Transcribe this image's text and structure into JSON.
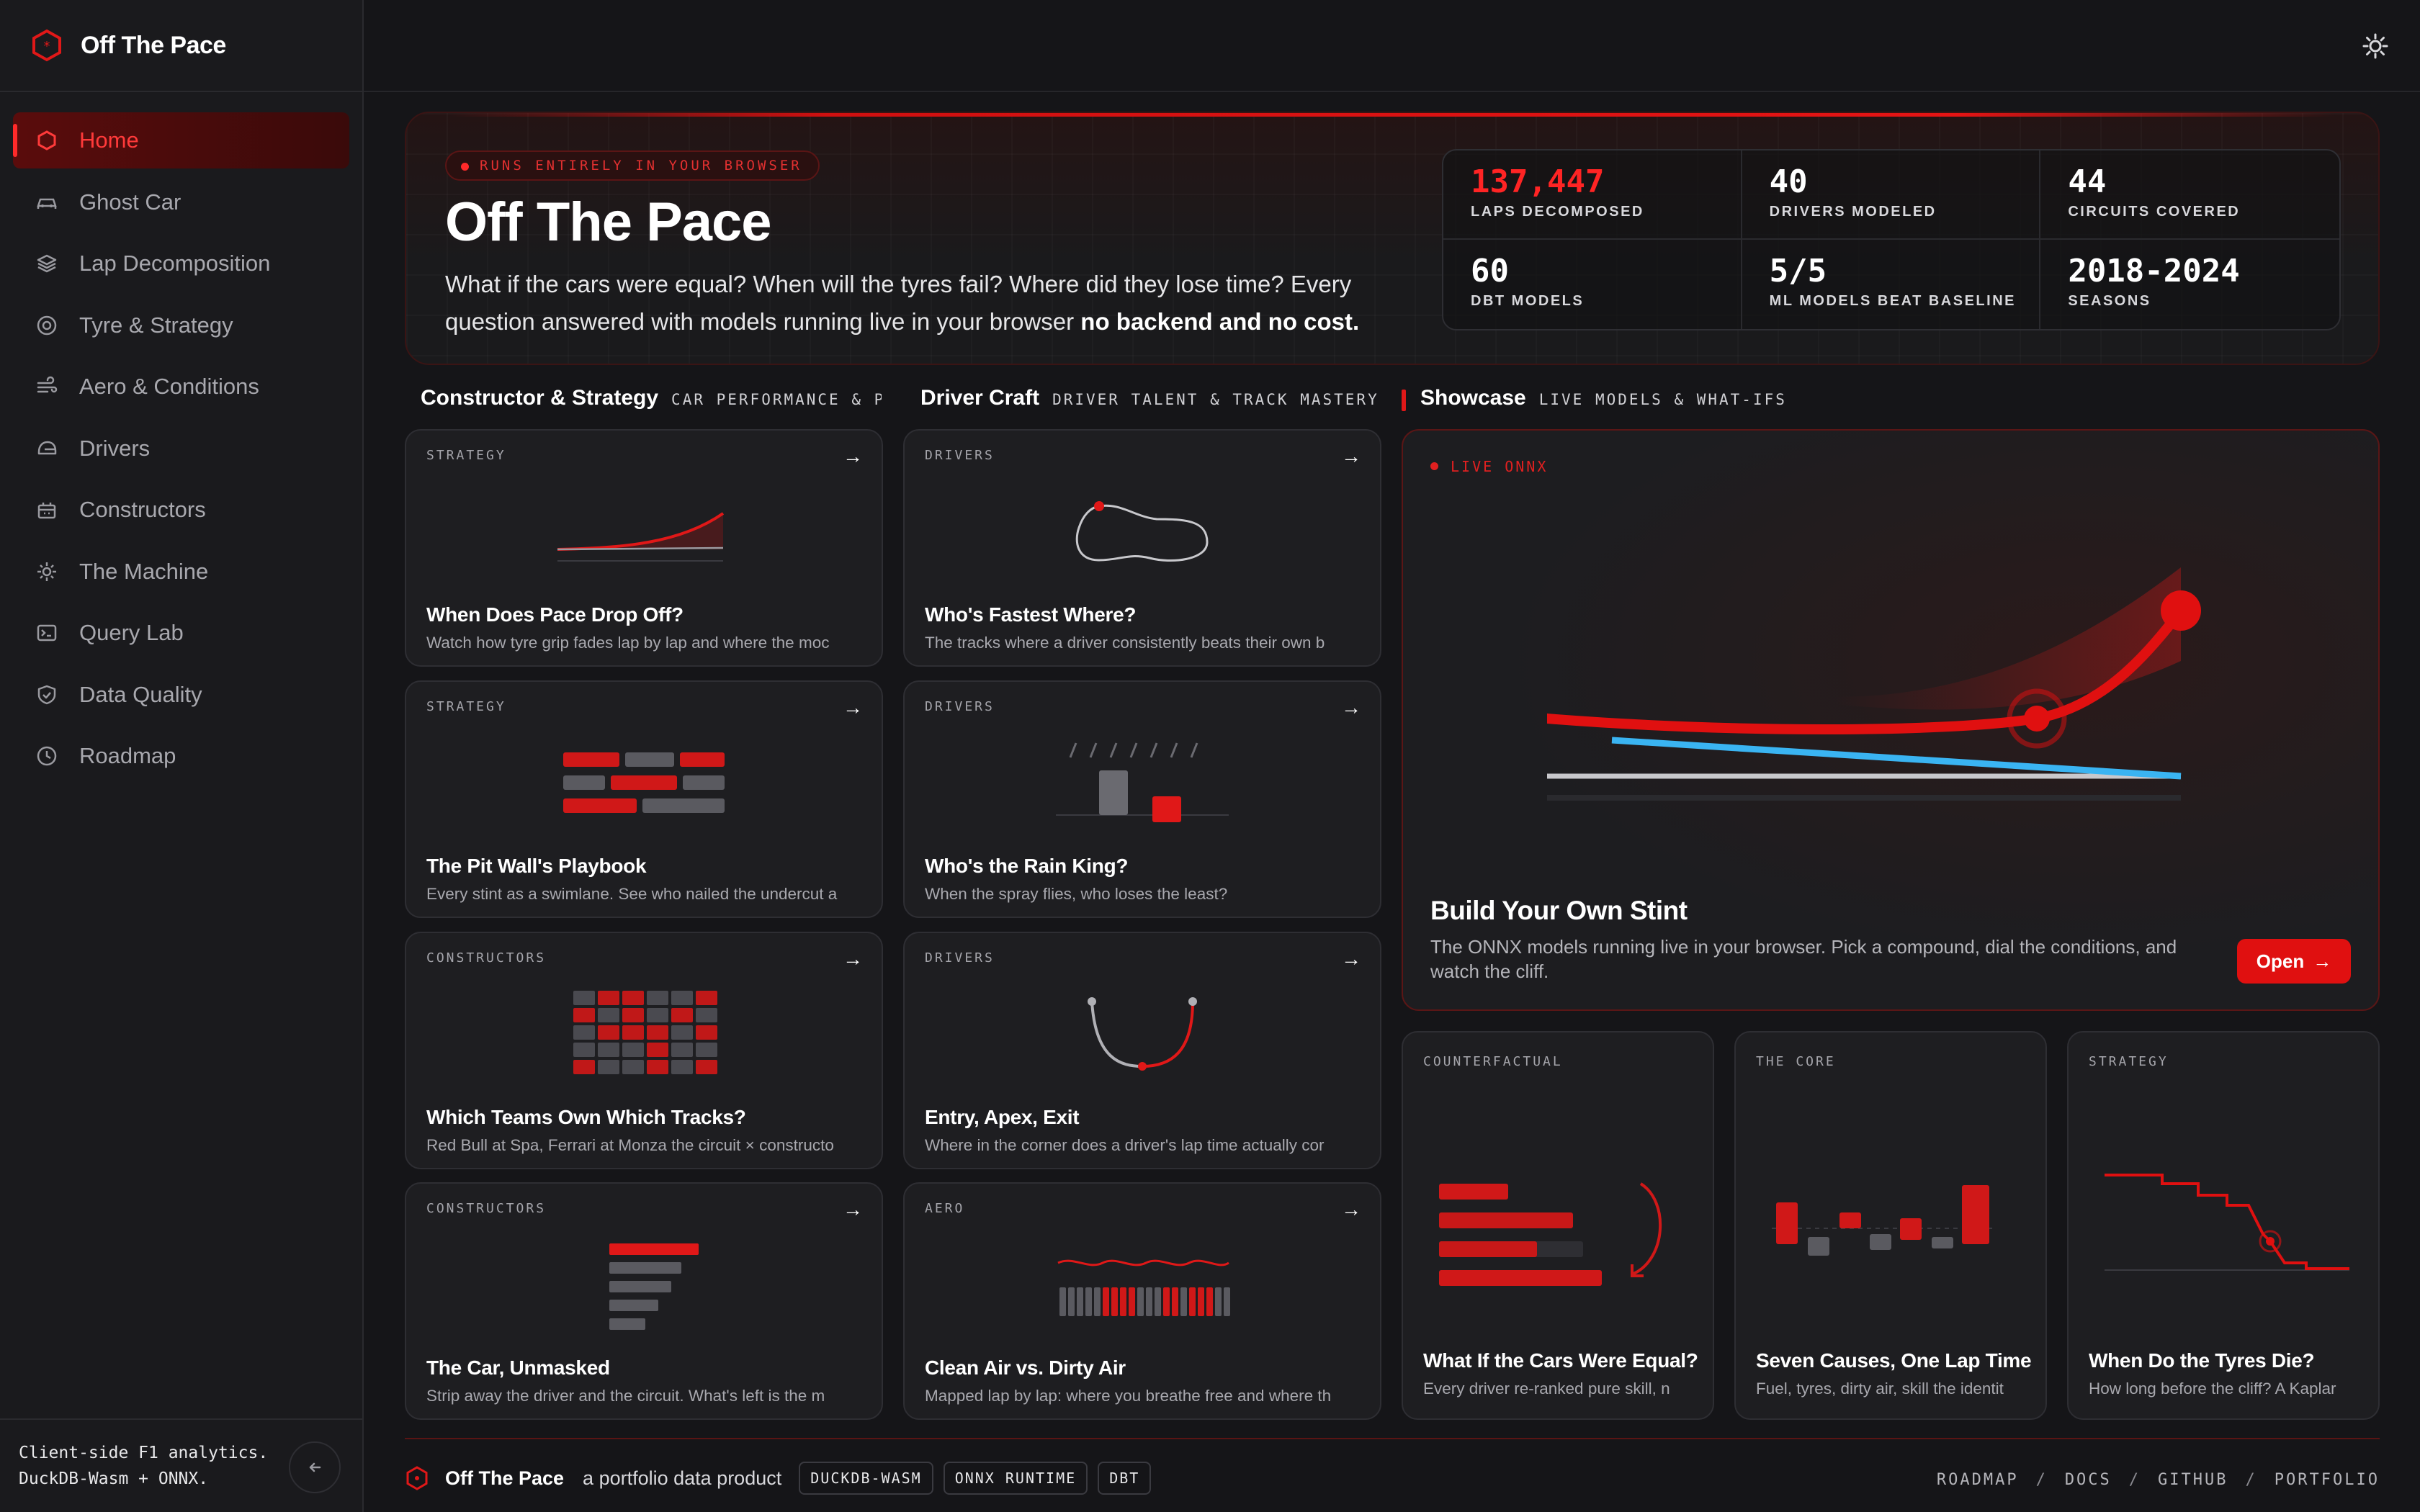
{
  "app": {
    "name": "Off The Pace"
  },
  "sidebar": {
    "items": [
      {
        "label": "Home",
        "icon": "hexagon-icon",
        "active": true
      },
      {
        "label": "Ghost Car",
        "icon": "car-icon"
      },
      {
        "label": "Lap Decomposition",
        "icon": "layers-icon"
      },
      {
        "label": "Tyre & Strategy",
        "icon": "tyre-icon"
      },
      {
        "label": "Aero & Conditions",
        "icon": "wind-icon"
      },
      {
        "label": "Drivers",
        "icon": "helmet-icon"
      },
      {
        "label": "Constructors",
        "icon": "factory-icon"
      },
      {
        "label": "The Machine",
        "icon": "cog-icon"
      },
      {
        "label": "Query Lab",
        "icon": "terminal-icon"
      },
      {
        "label": "Data Quality",
        "icon": "shield-icon"
      },
      {
        "label": "Roadmap",
        "icon": "clock-icon"
      }
    ],
    "footer_line1": "Client-side F1 analytics.",
    "footer_line2": "DuckDB-Wasm + ONNX.",
    "collapse_icon": "arrow-left-icon"
  },
  "topbar": {
    "theme_icon": "sun-icon"
  },
  "hero": {
    "badge": "RUNS ENTIRELY IN YOUR BROWSER",
    "title": "Off The Pace",
    "desc_main": "What if the cars were equal? When will the tyres fail? Where did they lose time? Every question answered with models running live in your browser",
    "desc_bold": "no backend and no cost.",
    "stats": [
      {
        "value": "137,447",
        "label": "LAPS DECOMPOSED",
        "accent": "#ff2424"
      },
      {
        "value": "40",
        "label": "DRIVERS MODELED"
      },
      {
        "value": "44",
        "label": "CIRCUITS COVERED"
      },
      {
        "value": "60",
        "label": "DBT MODELS"
      },
      {
        "value": "5/5",
        "label": "ML MODELS BEAT BASELINE"
      },
      {
        "value": "2018-2024",
        "label": "SEASONS"
      }
    ]
  },
  "sections": {
    "constructor": {
      "title": "Constructor & Strategy",
      "subtitle": "CAR PERFORMANCE & PI…"
    },
    "driver": {
      "title": "Driver Craft",
      "subtitle": "DRIVER TALENT & TRACK MASTERY"
    },
    "showcase": {
      "title": "Showcase",
      "subtitle": "LIVE MODELS & WHAT-IFS"
    }
  },
  "cards": [
    {
      "tag": "STRATEGY",
      "title": "When Does Pace Drop Off?",
      "desc": "Watch how tyre grip fades lap by lap and where the moc"
    },
    {
      "tag": "DRIVERS",
      "title": "Who's Fastest Where?",
      "desc": "The tracks where a driver consistently beats their own b"
    },
    {
      "tag": "STRATEGY",
      "title": "The Pit Wall's Playbook",
      "desc": "Every stint as a swimlane. See who nailed the undercut a"
    },
    {
      "tag": "DRIVERS",
      "title": "Who's the Rain King?",
      "desc": "When the spray flies, who loses the least?"
    },
    {
      "tag": "CONSTRUCTORS",
      "title": "Which Teams Own Which Tracks?",
      "desc": "Red Bull at Spa, Ferrari at Monza the circuit × constructo"
    },
    {
      "tag": "DRIVERS",
      "title": "Entry, Apex, Exit",
      "desc": "Where in the corner does a driver's lap time actually cor"
    },
    {
      "tag": "CONSTRUCTORS",
      "title": "The Car, Unmasked",
      "desc": "Strip away the driver and the circuit. What's left is the m"
    },
    {
      "tag": "AERO",
      "title": "Clean Air vs. Dirty Air",
      "desc": "Mapped lap by lap: where you breathe free and where th"
    }
  ],
  "showcase": {
    "badge": "LIVE ONNX",
    "title": "Build Your Own Stint",
    "desc": "The ONNX models running live in your browser. Pick a compound, dial the conditions, and watch the cliff.",
    "button": "Open"
  },
  "minis": [
    {
      "tag": "COUNTERFACTUAL",
      "title": "What If the Cars Were Equal?",
      "desc": "Every driver re-ranked pure skill, n"
    },
    {
      "tag": "THE CORE",
      "title": "Seven Causes, One Lap Time",
      "desc": "Fuel, tyres, dirty air, skill the identit"
    },
    {
      "tag": "STRATEGY",
      "title": "When Do the Tyres Die?",
      "desc": "How long before the cliff? A Kaplar"
    }
  ],
  "footer": {
    "name": "Off The Pace",
    "tagline": "a portfolio data product",
    "pills": [
      "DUCKDB-WASM",
      "ONNX RUNTIME",
      "DBT"
    ],
    "links": [
      "ROADMAP",
      "DOCS",
      "GITHUB",
      "PORTFOLIO"
    ]
  },
  "colors": {
    "accent": "#e01010",
    "accent_bright": "#ff2424",
    "blue": "#3ab4f2",
    "bg": "#151518"
  }
}
